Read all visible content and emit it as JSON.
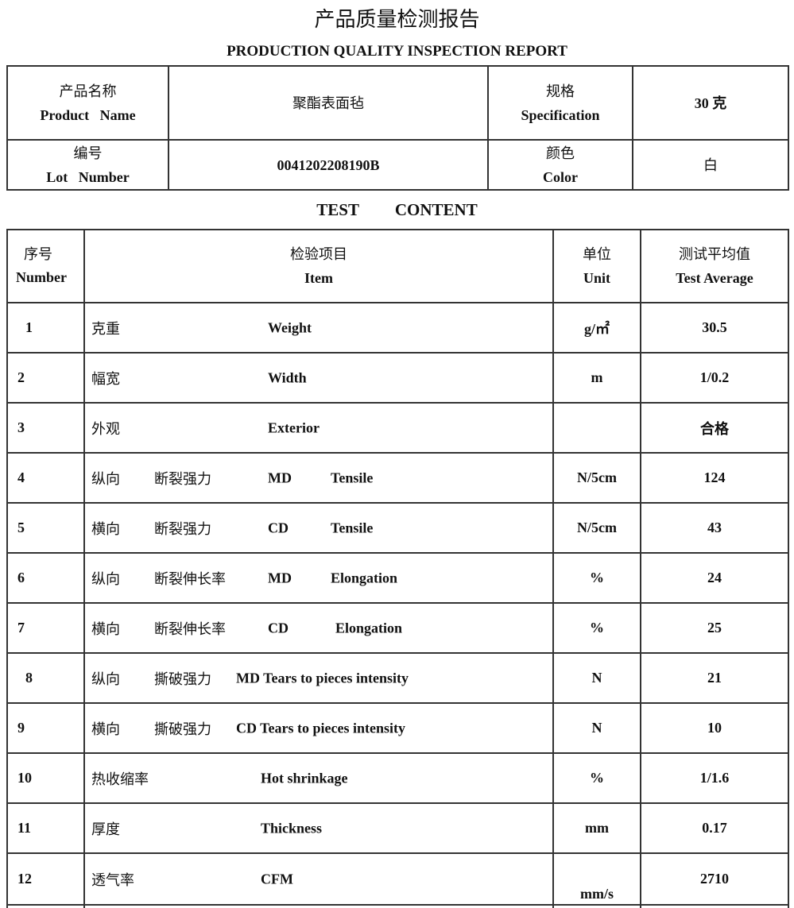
{
  "title": "产品质量检测报告",
  "subtitle": "PRODUCTION QUALITY INSPECTION REPORT",
  "info": {
    "product_name_cn": "产品名称",
    "product_name_en": "Product   Name",
    "product_name_value": "聚酯表面毡",
    "spec_cn": "规格",
    "spec_en": "Specification",
    "spec_value": "30 克",
    "lot_cn": "编号",
    "lot_en": "Lot   Number",
    "lot_value": "0041202208190B",
    "color_cn": "颜色",
    "color_en": "Color",
    "color_value": "白"
  },
  "test_content_title": "TEST CONTENT",
  "columns": {
    "num_cn": "序号",
    "num_en": "Number",
    "item_cn": "检验项目",
    "item_en": "Item",
    "unit_cn": "单位",
    "unit_en": "Unit",
    "avg_cn": "测试平均值",
    "avg_en": "Test Average"
  },
  "rows": [
    {
      "no": "1",
      "cn": "克重",
      "en": "Weight",
      "unit": "g/㎡",
      "value": "30.5"
    },
    {
      "no": "2",
      "cn": "幅宽",
      "en": "Width",
      "unit": "m",
      "value": "1/0.2"
    },
    {
      "no": "3",
      "cn": "外观",
      "en": "Exterior",
      "unit": "",
      "value": "合格"
    },
    {
      "no": "4",
      "dir": "纵向",
      "cn": "断裂强力",
      "code": "MD",
      "en": "Tensile",
      "unit": "N/5cm",
      "value": "124"
    },
    {
      "no": "5",
      "dir": "横向",
      "cn": "断裂强力",
      "code": "CD",
      "en": "Tensile",
      "unit": "N/5cm",
      "value": "43"
    },
    {
      "no": "6",
      "dir": "纵向",
      "cn": "断裂伸长率",
      "code": "MD",
      "en": "Elongation",
      "unit": "%",
      "value": "24"
    },
    {
      "no": "7",
      "dir": "横向",
      "cn": "断裂伸长率",
      "code": "CD",
      "en": "Elongation",
      "unit": "%",
      "value": "25"
    },
    {
      "no": "8",
      "dir": "纵向",
      "cn": "撕破强力",
      "en": "MD Tears to pieces intensity",
      "unit": "N",
      "value": "21"
    },
    {
      "no": "9",
      "dir": "横向",
      "cn": "撕破强力",
      "en": "CD Tears to pieces intensity",
      "unit": "N",
      "value": "10"
    },
    {
      "no": "10",
      "cn": "热收缩率",
      "en": "Hot shrinkage",
      "unit": "%",
      "value": "1/1.6"
    },
    {
      "no": "11",
      "cn": "厚度",
      "en": "Thickness",
      "unit": "mm",
      "value": "0.17"
    },
    {
      "no": "12",
      "cn": "透气率",
      "en": "CFM",
      "unit": "mm/s",
      "value": "2710"
    }
  ]
}
